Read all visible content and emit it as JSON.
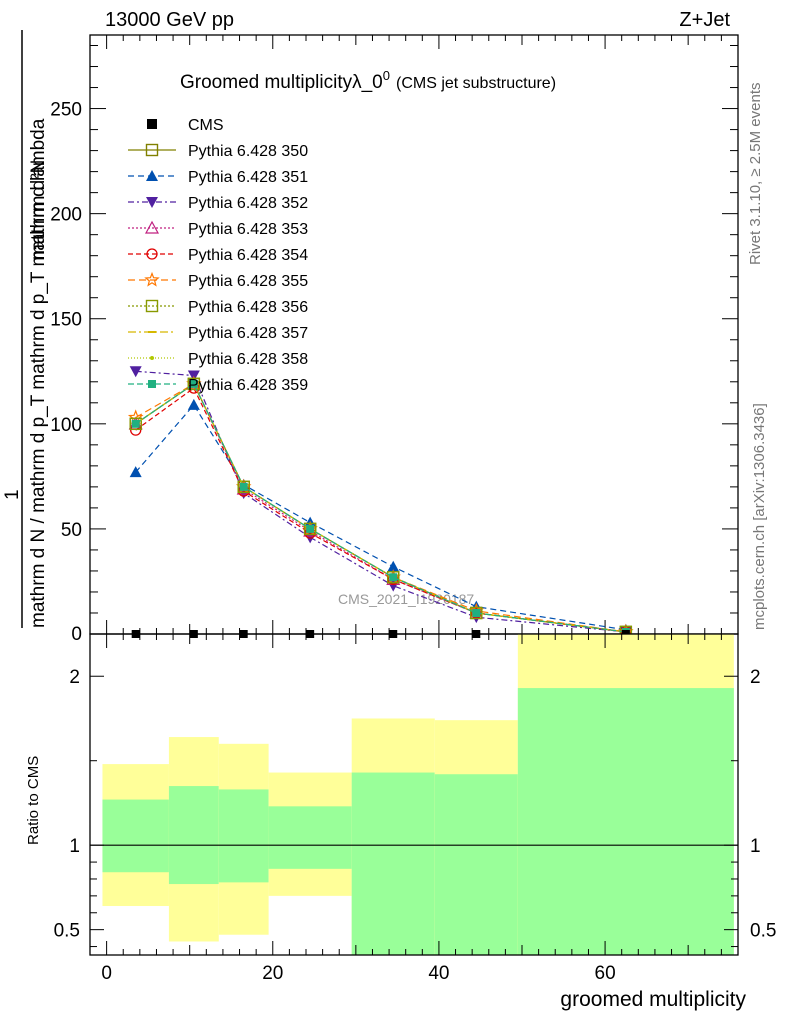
{
  "header": {
    "left": "13000 GeV pp",
    "right": "Z+Jet"
  },
  "side_labels": {
    "rivet": "Rivet 3.1.10, ≥ 2.5M events",
    "mcplots": "mcplots.cern.ch [arXiv:1306.3436]"
  },
  "watermark": "CMS_2021_I1920187",
  "colors": {
    "band_inner": "#99ff99",
    "band_outer": "#ffff99"
  },
  "chart_data": [
    {
      "type": "line",
      "title_main": "Groomed multiplicityλ_0",
      "title_sup": "0",
      "title_sub": "(CMS jet substructure)",
      "ylabel_num": "1",
      "ylabel_den": "mathrm d N / mathrm d p_T mathrm d p_T mathrm d lambda",
      "ylabel_top": "mathrm d²N",
      "xlim": [
        -2,
        76
      ],
      "ylim": [
        0,
        285
      ],
      "yticks": [
        50,
        100,
        150,
        200,
        250
      ],
      "x": [
        3.5,
        10.5,
        16.5,
        24.5,
        34.5,
        44.5,
        62.5
      ],
      "data_series": {
        "name": "CMS",
        "color": "#000000",
        "values": [
          0,
          0,
          0,
          0,
          0,
          0,
          0
        ]
      },
      "series": [
        {
          "name": "Pythia 6.428 350",
          "color": "#808000",
          "marker": "square-open",
          "dash": "",
          "values": [
            100,
            119,
            70,
            50,
            27,
            10,
            1
          ]
        },
        {
          "name": "Pythia 6.428 351",
          "color": "#0050b0",
          "marker": "triangle-up-filled",
          "dash": "6,4",
          "values": [
            77,
            109,
            71,
            53,
            32,
            13,
            2
          ]
        },
        {
          "name": "Pythia 6.428 352",
          "color": "#5020a0",
          "marker": "triangle-down-filled",
          "dash": "6,3,2,3",
          "values": [
            125,
            123,
            67,
            46,
            23,
            8,
            1
          ]
        },
        {
          "name": "Pythia 6.428 353",
          "color": "#c02080",
          "marker": "triangle-up-open",
          "dash": "2,2",
          "values": [
            100,
            119,
            69,
            49,
            26,
            10,
            1
          ]
        },
        {
          "name": "Pythia 6.428 354",
          "color": "#e00000",
          "marker": "circle-open",
          "dash": "5,3",
          "values": [
            97,
            117,
            68,
            48,
            26,
            10,
            1
          ]
        },
        {
          "name": "Pythia 6.428 355",
          "color": "#ff7700",
          "marker": "star-open",
          "dash": "7,4",
          "values": [
            103,
            119,
            70,
            50,
            27,
            11,
            1
          ]
        },
        {
          "name": "Pythia 6.428 356",
          "color": "#889900",
          "marker": "square-open",
          "dash": "2,2",
          "values": [
            100,
            119,
            70,
            50,
            27,
            10,
            1
          ]
        },
        {
          "name": "Pythia 6.428 357",
          "color": "#d6b800",
          "marker": "dash",
          "dash": "8,3,2,3",
          "values": [
            100,
            119,
            70,
            50,
            27,
            10,
            1
          ]
        },
        {
          "name": "Pythia 6.428 358",
          "color": "#b0c800",
          "marker": "dot",
          "dash": "1,2",
          "values": [
            100,
            119,
            70,
            50,
            27,
            10,
            1
          ]
        },
        {
          "name": "Pythia 6.428 359",
          "color": "#20b080",
          "marker": "square-filled",
          "dash": "6,3",
          "values": [
            100,
            119,
            70,
            50,
            27,
            10,
            1
          ]
        }
      ]
    },
    {
      "type": "area",
      "ylabel": "Ratio to CMS",
      "xlabel": "groomed multiplicity",
      "xlim": [
        -2,
        76
      ],
      "ylim": [
        0.35,
        2.25
      ],
      "yticks": [
        0.5,
        1,
        2
      ],
      "ytick_labels": [
        "0.5",
        "1",
        "2"
      ],
      "xticks": [
        0,
        20,
        40,
        60
      ],
      "reference_line": 1,
      "bins": [
        {
          "lo": -0.5,
          "hi": 7.5,
          "inner": [
            0.84,
            1.27
          ],
          "outer": [
            0.64,
            1.48
          ]
        },
        {
          "lo": 7.5,
          "hi": 13.5,
          "inner": [
            0.77,
            1.35
          ],
          "outer": [
            0.43,
            1.64
          ]
        },
        {
          "lo": 13.5,
          "hi": 19.5,
          "inner": [
            0.78,
            1.33
          ],
          "outer": [
            0.47,
            1.6
          ]
        },
        {
          "lo": 19.5,
          "hi": 29.5,
          "inner": [
            0.86,
            1.23
          ],
          "outer": [
            0.7,
            1.43
          ]
        },
        {
          "lo": 29.5,
          "hi": 39.5,
          "inner": [
            0.35,
            1.43
          ],
          "outer": [
            0.35,
            1.75
          ]
        },
        {
          "lo": 39.5,
          "hi": 49.5,
          "inner": [
            0.35,
            1.42
          ],
          "outer": [
            0.35,
            1.74
          ]
        },
        {
          "lo": 49.5,
          "hi": 75.5,
          "inner": [
            0.35,
            1.93
          ],
          "outer": [
            0.35,
            2.25
          ]
        }
      ]
    }
  ]
}
